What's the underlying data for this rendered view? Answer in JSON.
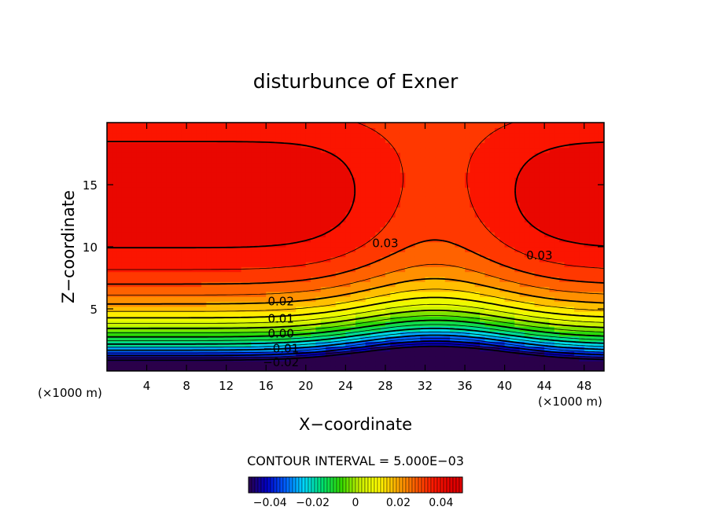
{
  "chart_data": {
    "type": "contour",
    "title": "disturbunce of Exner",
    "xlabel": "X−coordinate",
    "ylabel": "Z−coordinate",
    "x_unit_left": "(×1000 m)",
    "x_unit_right": "(×1000 m)",
    "xlim": [
      0,
      50
    ],
    "ylim": [
      0,
      20
    ],
    "x_ticks": [
      "4",
      "8",
      "12",
      "16",
      "20",
      "24",
      "28",
      "32",
      "36",
      "40",
      "44",
      "48"
    ],
    "y_ticks": [
      "5",
      "10",
      "15"
    ],
    "contour_interval_text": "CONTOUR INTERVAL = 5.000E−03",
    "contour_interval": 0.005,
    "value_range": [
      -0.05,
      0.045
    ],
    "contour_labels": [
      {
        "text": "0.03",
        "x": 28,
        "y": 10.3
      },
      {
        "text": "0.03",
        "x": 43.5,
        "y": 9.3
      },
      {
        "text": "0.02",
        "x": 17.5,
        "y": 5.6
      },
      {
        "text": "0.01",
        "x": 17.5,
        "y": 4.2
      },
      {
        "text": "0.00",
        "x": 17.5,
        "y": 3.0
      },
      {
        "text": "−0.01",
        "x": 17.5,
        "y": 1.8
      },
      {
        "text": "−0.02",
        "x": 17.5,
        "y": 0.7
      }
    ],
    "colorbar": {
      "tick_labels": [
        "−0.04",
        "−0.02",
        "0",
        "0.02",
        "0.04"
      ],
      "tick_values": [
        -0.04,
        -0.02,
        0,
        0.02,
        0.04
      ],
      "range": [
        -0.05,
        0.05
      ]
    },
    "colormap": [
      "#2a004a",
      "#0000c8",
      "#0060ff",
      "#00d8ff",
      "#00e070",
      "#30d800",
      "#c8f000",
      "#ffff00",
      "#ffb000",
      "#ff6000",
      "#ff1800",
      "#e00000"
    ],
    "grid": false,
    "legend": "none"
  }
}
